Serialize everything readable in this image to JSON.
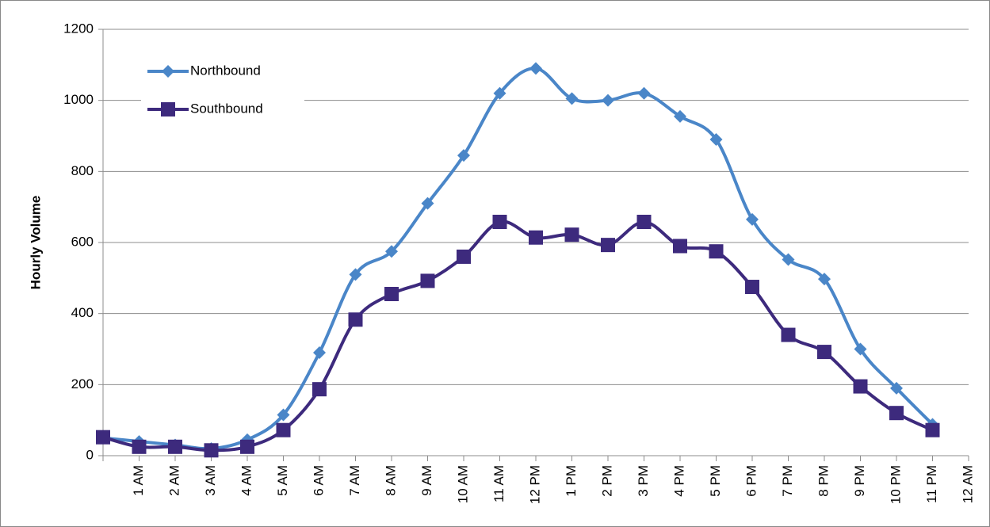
{
  "chart_data": {
    "type": "line",
    "y_label": "Hourly Volume",
    "categories": [
      null,
      "1 AM",
      "2 AM",
      "3 AM",
      "4 AM",
      "5 AM",
      "6 AM",
      "7 AM",
      "8 AM",
      "9 AM",
      "10 AM",
      "11 AM",
      "12 PM",
      "1 PM",
      "2 PM",
      "3 PM",
      "4 PM",
      "5 PM",
      "6 PM",
      "7 PM",
      "8 PM",
      "9 PM",
      "10 PM",
      "11 PM",
      "12 AM"
    ],
    "series": [
      {
        "name": "Northbound",
        "color": "#4a86c8",
        "marker": "diamond",
        "values": [
          50,
          40,
          30,
          20,
          45,
          115,
          290,
          510,
          575,
          710,
          845,
          1020,
          1090,
          1005,
          1000,
          1020,
          955,
          890,
          665,
          552,
          497,
          300,
          190,
          88,
          null
        ]
      },
      {
        "name": "Southbound",
        "color": "#3d2a7d",
        "marker": "square",
        "values": [
          52,
          25,
          25,
          15,
          25,
          72,
          187,
          383,
          455,
          492,
          560,
          658,
          614,
          622,
          593,
          658,
          590,
          575,
          475,
          340,
          292,
          195,
          120,
          72,
          null
        ]
      }
    ],
    "ylim": [
      0,
      1200
    ],
    "yticks": [
      0,
      200,
      400,
      600,
      800,
      1000,
      1200
    ],
    "grid": true,
    "smooth": true,
    "legend": "top-left"
  }
}
